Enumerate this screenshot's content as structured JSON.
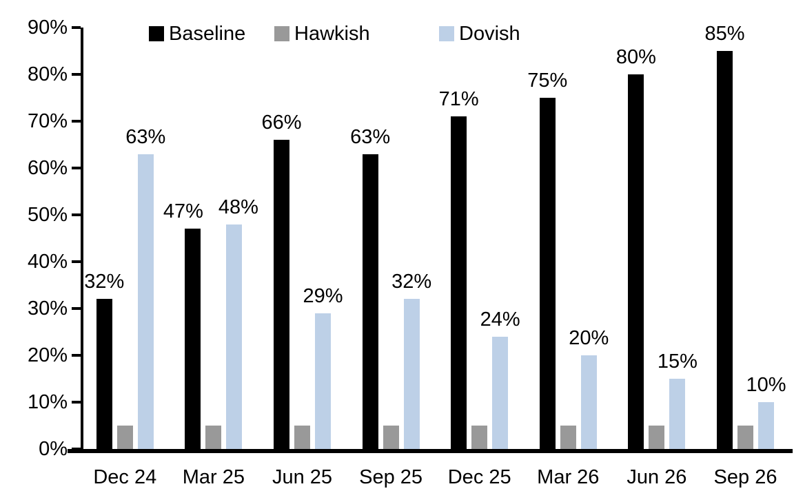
{
  "chart_data": {
    "type": "bar",
    "title": "",
    "xlabel": "",
    "ylabel": "",
    "categories": [
      "Dec 24",
      "Mar 25",
      "Jun 25",
      "Sep 25",
      "Dec 25",
      "Mar 26",
      "Jun 26",
      "Sep 26"
    ],
    "series": [
      {
        "name": "Baseline",
        "color": "#000000",
        "values": [
          32,
          47,
          66,
          63,
          71,
          75,
          80,
          85
        ],
        "labels": [
          "32%",
          "47%",
          "66%",
          "63%",
          "71%",
          "75%",
          "80%",
          "85%"
        ]
      },
      {
        "name": "Hawkish",
        "color": "#999999",
        "values": [
          5,
          5,
          5,
          5,
          5,
          5,
          5,
          5
        ],
        "labels": [
          "",
          "",
          "",
          "",
          "",
          "",
          "",
          ""
        ]
      },
      {
        "name": "Dovish",
        "color": "#bdd0e7",
        "values": [
          63,
          48,
          29,
          32,
          24,
          20,
          15,
          10
        ],
        "labels": [
          "63%",
          "48%",
          "29%",
          "32%",
          "24%",
          "20%",
          "15%",
          "10%"
        ]
      }
    ],
    "ylim": [
      0,
      90
    ],
    "ytick_step": 10,
    "ytick_labels": [
      "0%",
      "10%",
      "20%",
      "30%",
      "40%",
      "50%",
      "60%",
      "70%",
      "80%",
      "90%"
    ],
    "grid": false,
    "legend_position": "top"
  }
}
